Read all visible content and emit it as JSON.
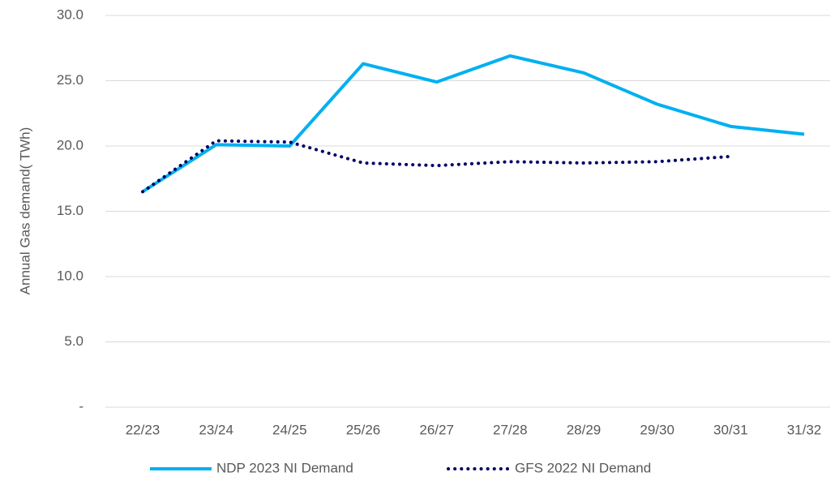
{
  "chart_data": {
    "type": "line",
    "y_label": "Annual Gas demand( TWh)",
    "categories": [
      "22/23",
      "23/24",
      "24/25",
      "25/26",
      "26/27",
      "27/28",
      "28/29",
      "29/30",
      "30/31",
      "31/32"
    ],
    "series": [
      {
        "name": "NDP 2023 NI Demand",
        "color": "#00b0f0",
        "style": "solid",
        "values": [
          16.5,
          20.1,
          20.0,
          26.3,
          24.9,
          26.9,
          25.6,
          23.2,
          21.5,
          20.9
        ]
      },
      {
        "name": "GFS 2022 NI Demand",
        "color": "#000066",
        "style": "dotted",
        "values": [
          16.5,
          20.4,
          20.3,
          18.7,
          18.5,
          18.8,
          18.7,
          18.8,
          19.2,
          null
        ]
      }
    ],
    "ylim": [
      0,
      30
    ],
    "yticks": [
      {
        "value": 0,
        "label": "-"
      },
      {
        "value": 5,
        "label": "5.0"
      },
      {
        "value": 10,
        "label": "10.0"
      },
      {
        "value": 15,
        "label": "15.0"
      },
      {
        "value": 20,
        "label": "20.0"
      },
      {
        "value": 25,
        "label": "25.0"
      },
      {
        "value": 30,
        "label": "30.0"
      }
    ],
    "grid": true,
    "legend": "bottom"
  }
}
